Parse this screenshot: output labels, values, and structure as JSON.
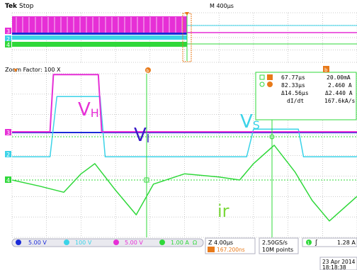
{
  "header": {
    "brand_bold": "Tek",
    "brand_rest": "Stop",
    "main_timebase": "M 400µs",
    "zoom_factor": "Zoom Factor: 100 X"
  },
  "colors": {
    "ch1": "#1b2bd8",
    "ch2": "#3bd3e8",
    "ch3": "#e62fd6",
    "ch4": "#2fd83a",
    "cursor": "#e87a1a",
    "grid": "#9a9a9a",
    "bg": "#ffffff"
  },
  "channel_markers": {
    "ch3": "3",
    "ch2": "2",
    "ch4": "4",
    "trigger": "T",
    "cursor": "b"
  },
  "cursor_readout": {
    "row1": {
      "time": "67.77µs",
      "value": "20.00mA"
    },
    "row2": {
      "time": "82.33µs",
      "value": "2.460 A"
    },
    "row3": {
      "time": "Δ14.56µs",
      "value": "Δ2.440 A"
    },
    "row4": {
      "label": "dI/dt",
      "value": "167.6kA/s"
    },
    "box_icons": [
      "square-a-icon",
      "circle-b-icon"
    ]
  },
  "footer": {
    "ch1_scale": "5.00 V",
    "ch2_scale": "100 V",
    "ch3_scale": "5.00 V",
    "ch4_scale": "1.00 A",
    "ch4_suffix": "Ω",
    "zoom_timebase": "Z 4.00µs",
    "zoom_position": "167.200ns",
    "sample_rate": "2.50GS/s",
    "record_length": "10M points",
    "trigger_source": "1",
    "trigger_level": "1.28 A",
    "date": "23 Apr 2014",
    "time": "18:18:38"
  },
  "chart_data": {
    "type": "line",
    "title": "",
    "xlabel": "",
    "ylabel": "",
    "grid": true,
    "zoom_window_divisions": {
      "x": 10,
      "y": 8
    },
    "annotations": [
      {
        "text": "V",
        "sub": "H",
        "color": "#e62fd6",
        "series": "ch3"
      },
      {
        "text": "V",
        "sub": "l",
        "color": "#3a1bc8",
        "series": "ch1"
      },
      {
        "text": "V",
        "sub": "S",
        "color": "#3bd3e8",
        "series": "ch2"
      },
      {
        "text": "ir",
        "sub": "",
        "color": "#7ad83a",
        "series": "ch4"
      }
    ],
    "series": [
      {
        "name": "CH1",
        "scale": "5.00 V/div",
        "x": [
          0,
          0.92,
          1.0,
          1.05,
          2.3,
          2.35,
          10
        ],
        "y": [
          0,
          0,
          0,
          0,
          0,
          0,
          0
        ]
      },
      {
        "name": "CH2",
        "scale": "100 V/div",
        "x": [
          0,
          1.1,
          1.3,
          2.55,
          2.7,
          6.8,
          7.0,
          8.3,
          8.45,
          10
        ],
        "y": [
          -0.15,
          -0.15,
          2.8,
          2.8,
          -0.15,
          -0.15,
          1.2,
          1.2,
          -0.15,
          -0.15
        ]
      },
      {
        "name": "CH3",
        "scale": "5.00 V/div",
        "x": [
          0,
          1.1,
          1.2,
          2.5,
          2.6,
          10
        ],
        "y": [
          0,
          0,
          2.8,
          2.8,
          0,
          0
        ]
      },
      {
        "name": "CH4",
        "scale": "1.00 A/div",
        "x": [
          0,
          0.8,
          1.5,
          2.0,
          2.4,
          3.0,
          3.6,
          4.1,
          5.0,
          6.0,
          6.6,
          7.0,
          7.6,
          8.2,
          8.7,
          9.2,
          10
        ],
        "y": [
          0,
          -0.3,
          -0.6,
          0.3,
          0.8,
          -0.5,
          -1.7,
          -0.2,
          0.3,
          0.15,
          0.0,
          0.8,
          1.7,
          0.4,
          -1.0,
          -2.0,
          -0.8
        ]
      }
    ]
  }
}
